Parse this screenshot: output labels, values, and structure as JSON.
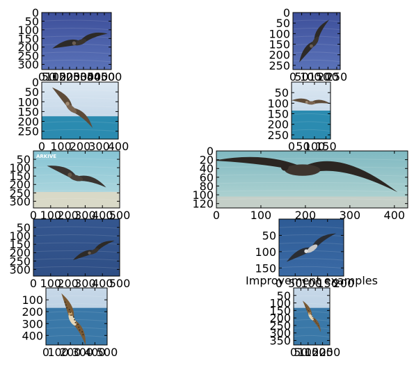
{
  "chart_data": [
    {
      "type": "image",
      "xticks": [
        "0",
        "50",
        "100",
        "150",
        "200",
        "250",
        "300",
        "350",
        "400",
        "450",
        "500"
      ],
      "yticks": [
        "0",
        "50",
        "100",
        "150",
        "200",
        "250",
        "300"
      ],
      "xlim": [
        0,
        500
      ],
      "ylim": [
        330,
        0
      ],
      "scene": {
        "sky": [
          "#3d4f9a",
          "#5a72b8"
        ],
        "sea": "#3a4f95",
        "bird": "flight-dark",
        "bx": 0.55,
        "by": 0.5,
        "bs": 1.0,
        "angle": -20
      }
    },
    {
      "type": "image",
      "xticks": [
        "0",
        "50",
        "100",
        "150",
        "200",
        "250"
      ],
      "yticks": [
        "0",
        "50",
        "100",
        "150",
        "200",
        "250"
      ],
      "xlim": [
        0,
        270
      ],
      "ylim": [
        270,
        0
      ],
      "scene": {
        "sky": [
          "#3d4f9a",
          "#5a72b8"
        ],
        "sea": "#3a4f95",
        "bird": "flight-dark",
        "bx": 0.45,
        "by": 0.5,
        "bs": 1.1,
        "angle": -60
      }
    },
    {
      "type": "image",
      "xticks": [
        "0",
        "100",
        "200",
        "300",
        "400"
      ],
      "yticks": [
        "0",
        "50",
        "100",
        "150",
        "200",
        "250"
      ],
      "xlim": [
        0,
        400
      ],
      "ylim": [
        290,
        0
      ],
      "scene": {
        "sky": [
          "#dbe7f2",
          "#b9cfe3"
        ],
        "sea": "#2b8bb0",
        "horizon": 0.6,
        "bird": "flight-brown",
        "bx": 0.4,
        "by": 0.45,
        "bs": 1.0,
        "angle": 40
      }
    },
    {
      "type": "image",
      "xticks": [
        "0",
        "50",
        "100",
        "150"
      ],
      "yticks": [
        "50",
        "100",
        "150",
        "200",
        "250"
      ],
      "xlim": [
        0,
        170
      ],
      "ylim": [
        270,
        0
      ],
      "scene": {
        "sky": [
          "#dbe7f2",
          "#b9cfe3"
        ],
        "sea": "#2b8bb0",
        "horizon": 0.5,
        "bird": "flight-brown",
        "bx": 0.5,
        "by": 0.35,
        "bs": 1.0,
        "angle": 0
      }
    },
    {
      "type": "image",
      "xticks": [
        "0",
        "100",
        "200",
        "300",
        "400",
        "500"
      ],
      "yticks": [
        "50",
        "100",
        "150",
        "200",
        "250",
        "300"
      ],
      "xlim": [
        0,
        500
      ],
      "ylim": [
        340,
        0
      ],
      "scene": {
        "sky": [
          "#86c4d4",
          "#b7dbe0"
        ],
        "sea": "#d9d9c7",
        "horizon": 0.72,
        "bird": "glide",
        "bx": 0.5,
        "by": 0.45,
        "bs": 1.1,
        "angle": 15
      },
      "logo": "ARKIVE"
    },
    {
      "type": "image",
      "xticks": [
        "0",
        "100",
        "200",
        "300",
        "400"
      ],
      "yticks": [
        "0",
        "20",
        "40",
        "60",
        "80",
        "100",
        "120"
      ],
      "xlim": [
        0,
        430
      ],
      "ylim": [
        130,
        0
      ],
      "scene": {
        "sky": [
          "#7fb9c2",
          "#b6d6d3"
        ],
        "sea": "#c4cfc8",
        "horizon": 0.8,
        "bird": "wide",
        "bx": 0.45,
        "by": 0.28,
        "bs": 1.0,
        "angle": 0
      }
    },
    {
      "type": "image",
      "xticks": [
        "0",
        "100",
        "200",
        "300",
        "400",
        "500"
      ],
      "yticks": [
        "50",
        "100",
        "150",
        "200",
        "250",
        "300"
      ],
      "xlim": [
        0,
        500
      ],
      "ylim": [
        340,
        0
      ],
      "scene": {
        "sky": [
          "#34568f",
          "#2f4f86"
        ],
        "sea": "#2e4f89",
        "bird": "flight-dark",
        "bx": 0.7,
        "by": 0.55,
        "bs": 0.8,
        "angle": -30
      }
    },
    {
      "type": "image",
      "xticks": [
        "0",
        "50",
        "100",
        "150",
        "200"
      ],
      "yticks": [
        "50",
        "100",
        "150"
      ],
      "xlim": [
        0,
        200
      ],
      "ylim": [
        175,
        0
      ],
      "scene": {
        "sky": [
          "#2e5b95",
          "#3a6aa5"
        ],
        "sea": "#2e5b95",
        "bird": "flight-grey",
        "bx": 0.5,
        "by": 0.5,
        "bs": 1.0,
        "angle": -35
      }
    },
    {
      "type": "image",
      "xticks": [
        "0",
        "100",
        "200",
        "300",
        "400",
        "500"
      ],
      "yticks": [
        "100",
        "200",
        "300",
        "400"
      ],
      "xlim": [
        0,
        500
      ],
      "ylim": [
        480,
        0
      ],
      "scene": {
        "sky": [
          "#c7d8e8",
          "#b0c9df"
        ],
        "sea": "#3a78a8",
        "horizon": 0.35,
        "bird": "speckled",
        "bx": 0.45,
        "by": 0.55,
        "bs": 1.0,
        "angle": 60
      }
    },
    {
      "type": "image",
      "xticks": [
        "0",
        "50",
        "100",
        "150",
        "200",
        "250"
      ],
      "yticks": [
        "50",
        "100",
        "150",
        "200",
        "250",
        "300",
        "350"
      ],
      "xlim": [
        0,
        250
      ],
      "ylim": [
        380,
        0
      ],
      "scene": {
        "sky": [
          "#c7d8e8",
          "#b0c9df"
        ],
        "sea": "#3a78a8",
        "horizon": 0.35,
        "bird": "speckled",
        "bx": 0.5,
        "by": 0.5,
        "bs": 1.0,
        "angle": 55
      }
    }
  ],
  "caption": "Improvement examples"
}
